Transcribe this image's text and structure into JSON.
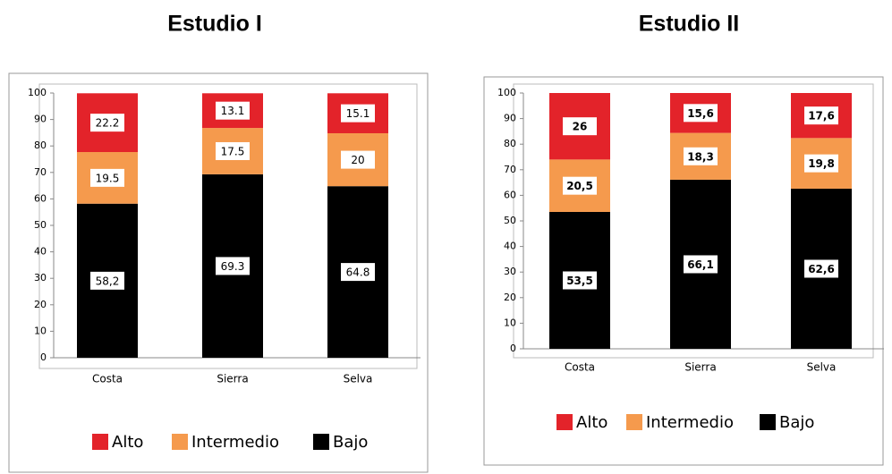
{
  "chart_data": [
    {
      "type": "bar",
      "stacked": true,
      "title": "Estudio I",
      "categories": [
        "Costa",
        "Sierra",
        "Selva"
      ],
      "series": [
        {
          "name": "Alto",
          "color": "#e3232a",
          "values": [
            22.2,
            13.1,
            15.1
          ],
          "value_labels": [
            "22.2",
            "13.1",
            "15.1"
          ]
        },
        {
          "name": "Intermedio",
          "color": "#f59a4d",
          "values": [
            19.5,
            17.5,
            20
          ],
          "value_labels": [
            "19.5",
            "17.5",
            "20"
          ]
        },
        {
          "name": "Bajo",
          "color": "#000000",
          "values": [
            58.2,
            69.3,
            64.8
          ],
          "value_labels": [
            "58,2",
            "69.3",
            "64.8"
          ]
        }
      ],
      "ylim": [
        0,
        100
      ],
      "yticks": [
        0,
        10,
        20,
        30,
        40,
        50,
        60,
        70,
        80,
        90,
        100
      ],
      "legend": "bottom"
    },
    {
      "type": "bar",
      "stacked": true,
      "title": "Estudio II",
      "categories": [
        "Costa",
        "Sierra",
        "Selva"
      ],
      "series": [
        {
          "name": "Alto",
          "color": "#e3232a",
          "values": [
            26,
            15.6,
            17.6
          ],
          "value_labels": [
            "26",
            "15,6",
            "17,6"
          ]
        },
        {
          "name": "Intermedio",
          "color": "#f59a4d",
          "values": [
            20.5,
            18.3,
            19.8
          ],
          "value_labels": [
            "20,5",
            "18,3",
            "19,8"
          ]
        },
        {
          "name": "Bajo",
          "color": "#000000",
          "values": [
            53.5,
            66.1,
            62.6
          ],
          "value_labels": [
            "53,5",
            "66,1",
            "62,6"
          ]
        }
      ],
      "ylim": [
        0,
        100
      ],
      "yticks": [
        0,
        10,
        20,
        30,
        40,
        50,
        60,
        70,
        80,
        90,
        100
      ],
      "legend": "bottom"
    }
  ]
}
